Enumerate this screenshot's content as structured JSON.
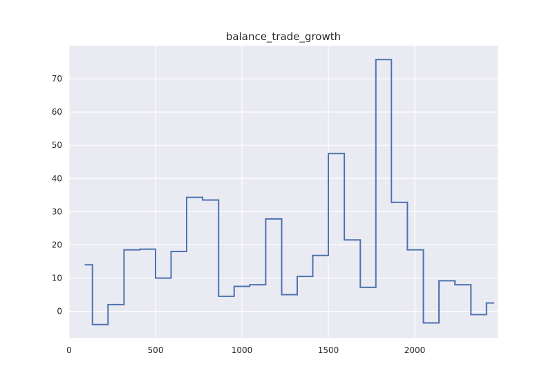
{
  "chart_data": {
    "type": "line",
    "drawstyle": "steps-mid",
    "title": "balance_trade_growth",
    "xlabel": "",
    "ylabel": "",
    "xlim": [
      0,
      2480
    ],
    "ylim": [
      -8,
      80
    ],
    "x_ticks": [
      0,
      500,
      1000,
      1500,
      2000
    ],
    "y_ticks": [
      0,
      10,
      20,
      30,
      40,
      50,
      60,
      70
    ],
    "grid": true,
    "background_color": "#EAEAF2",
    "grid_color": "#FFFFFF",
    "line_color": "#4C72B0",
    "x": [
      90,
      180,
      270,
      365,
      455,
      545,
      635,
      725,
      820,
      910,
      1000,
      1090,
      1185,
      1275,
      1365,
      1455,
      1545,
      1640,
      1730,
      1820,
      1910,
      2005,
      2095,
      2185,
      2280,
      2370,
      2460
    ],
    "values": [
      14,
      -4,
      2,
      18.5,
      18.7,
      10,
      18,
      34.3,
      33.5,
      4.5,
      7.5,
      8,
      27.8,
      5,
      10.5,
      16.8,
      47.5,
      21.5,
      7.2,
      75.8,
      32.8,
      18.5,
      -3.5,
      9.2,
      8,
      -1,
      2.5
    ]
  }
}
